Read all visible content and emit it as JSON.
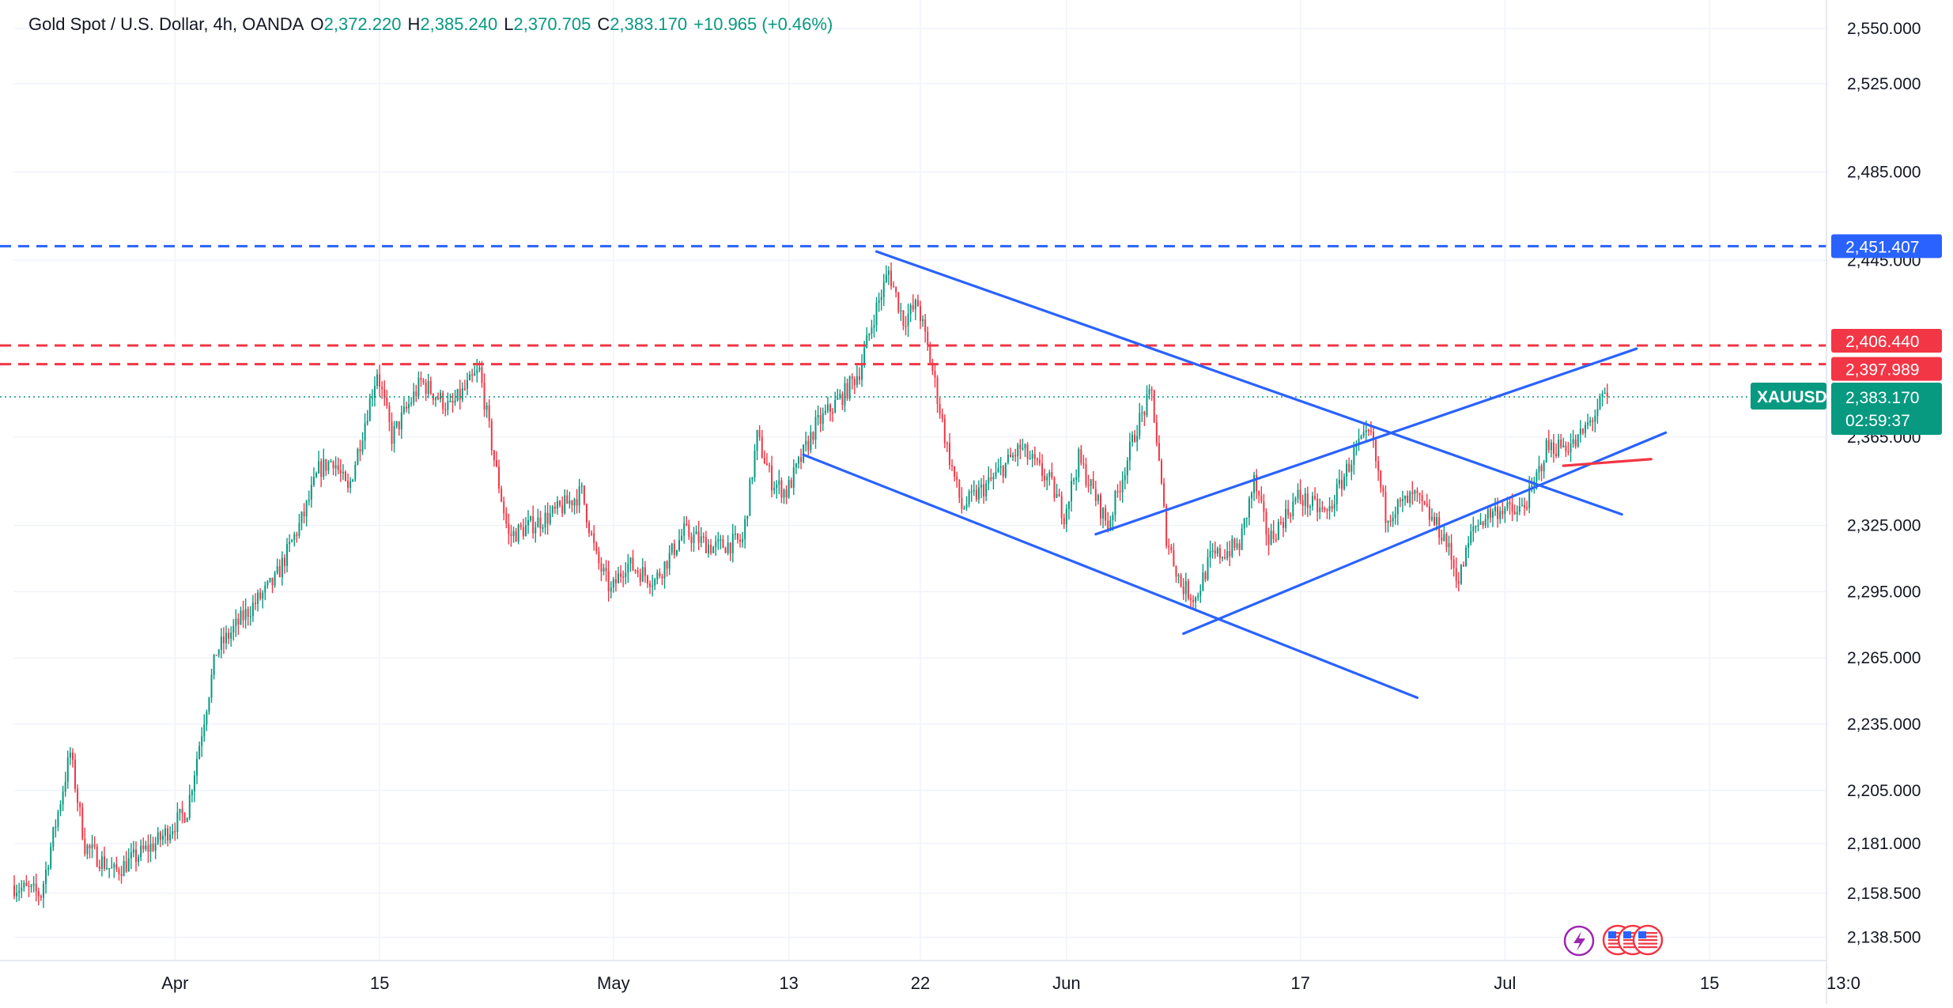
{
  "legend": {
    "title": "Gold Spot / U.S. Dollar, 4h, OANDA",
    "open_label": "O",
    "open": "2,372.220",
    "high_label": "H",
    "high": "2,385.240",
    "low_label": "L",
    "low": "2,370.705",
    "close_label": "C",
    "close": "2,383.170",
    "change": "+10.965 (+0.46%)"
  },
  "colors": {
    "up": "#089981",
    "down": "#f23645",
    "blue": "#2962ff",
    "red": "#f23645",
    "grid": "#f0f3fa",
    "axis_text": "#131722",
    "price_dotted": "#089981"
  },
  "chart_data": {
    "type": "candlestick",
    "symbol": "XAUUSD",
    "interval": "4h",
    "y_axis": {
      "range": [
        2128,
        2560
      ],
      "ticks": [
        "2,550.000",
        "2,525.000",
        "2,485.000",
        "2,445.000",
        "2,365.000",
        "2,325.000",
        "2,295.000",
        "2,265.000",
        "2,235.000",
        "2,205.000",
        "2,181.000",
        "2,158.500",
        "2,138.500"
      ],
      "tick_values": [
        2550,
        2525,
        2485,
        2445,
        2365,
        2325,
        2295,
        2265,
        2235,
        2205,
        2181,
        2158.5,
        2138.5
      ]
    },
    "x_axis": {
      "labels": [
        "Apr",
        "15",
        "May",
        "13",
        "22",
        "Jun",
        "17",
        "Jul",
        "15",
        "13:0"
      ],
      "label_dates": [
        "2024-04-01",
        "2024-04-15",
        "2024-05-01",
        "2024-05-13",
        "2024-05-22",
        "2024-06-01",
        "2024-06-17",
        "2024-07-01",
        "2024-07-15",
        "2024-07-23"
      ],
      "start": "2024-03-21",
      "end": "2024-07-23"
    },
    "price_path": [
      [
        "2024-03-21",
        2162
      ],
      [
        "2024-03-23",
        2158
      ],
      [
        "2024-03-25",
        2222
      ],
      [
        "2024-03-26",
        2180
      ],
      [
        "2024-03-28",
        2168
      ],
      [
        "2024-03-31",
        2182
      ],
      [
        "2024-04-02",
        2196
      ],
      [
        "2024-04-04",
        2268
      ],
      [
        "2024-04-06",
        2285
      ],
      [
        "2024-04-08",
        2300
      ],
      [
        "2024-04-10",
        2330
      ],
      [
        "2024-04-11",
        2350
      ],
      [
        "2024-04-12",
        2355
      ],
      [
        "2024-04-13",
        2340
      ],
      [
        "2024-04-15",
        2395
      ],
      [
        "2024-04-16",
        2365
      ],
      [
        "2024-04-18",
        2390
      ],
      [
        "2024-04-20",
        2378
      ],
      [
        "2024-04-22",
        2395
      ],
      [
        "2024-04-23",
        2355
      ],
      [
        "2024-04-24",
        2320
      ],
      [
        "2024-04-27",
        2330
      ],
      [
        "2024-04-29",
        2340
      ],
      [
        "2024-04-30",
        2310
      ],
      [
        "2024-05-01",
        2295
      ],
      [
        "2024-05-02",
        2308
      ],
      [
        "2024-05-04",
        2300
      ],
      [
        "2024-05-06",
        2322
      ],
      [
        "2024-05-08",
        2315
      ],
      [
        "2024-05-10",
        2318
      ],
      [
        "2024-05-11",
        2365
      ],
      [
        "2024-05-12",
        2345
      ],
      [
        "2024-05-13",
        2340
      ],
      [
        "2024-05-15",
        2370
      ],
      [
        "2024-05-17",
        2385
      ],
      [
        "2024-05-18",
        2395
      ],
      [
        "2024-05-19",
        2420
      ],
      [
        "2024-05-20",
        2440
      ],
      [
        "2024-05-21",
        2418
      ],
      [
        "2024-05-22",
        2425
      ],
      [
        "2024-05-23",
        2395
      ],
      [
        "2024-05-24",
        2360
      ],
      [
        "2024-05-25",
        2333
      ],
      [
        "2024-05-27",
        2345
      ],
      [
        "2024-05-29",
        2360
      ],
      [
        "2024-05-31",
        2345
      ],
      [
        "2024-06-01",
        2330
      ],
      [
        "2024-06-02",
        2355
      ],
      [
        "2024-06-04",
        2325
      ],
      [
        "2024-06-06",
        2370
      ],
      [
        "2024-06-07",
        2385
      ],
      [
        "2024-06-08",
        2320
      ],
      [
        "2024-06-09",
        2298
      ],
      [
        "2024-06-10",
        2292
      ],
      [
        "2024-06-11",
        2310
      ],
      [
        "2024-06-13",
        2316
      ],
      [
        "2024-06-14",
        2345
      ],
      [
        "2024-06-15",
        2318
      ],
      [
        "2024-06-17",
        2338
      ],
      [
        "2024-06-19",
        2330
      ],
      [
        "2024-06-21",
        2360
      ],
      [
        "2024-06-22",
        2366
      ],
      [
        "2024-06-23",
        2330
      ],
      [
        "2024-06-25",
        2338
      ],
      [
        "2024-06-27",
        2320
      ],
      [
        "2024-06-28",
        2300
      ],
      [
        "2024-06-29",
        2324
      ],
      [
        "2024-06-30",
        2330
      ],
      [
        "2024-07-01",
        2333
      ],
      [
        "2024-07-02",
        2330
      ],
      [
        "2024-07-03",
        2340
      ],
      [
        "2024-07-04",
        2360
      ],
      [
        "2024-07-06",
        2362
      ],
      [
        "2024-07-07",
        2372
      ],
      [
        "2024-07-08",
        2383.17
      ]
    ],
    "horizontal_levels": [
      {
        "value": 2451.407,
        "label": "2,451.407",
        "color": "blue",
        "style": "dashed"
      },
      {
        "value": 2406.44,
        "label": "2,406.440",
        "color": "red",
        "style": "dashed"
      },
      {
        "value": 2397.989,
        "label": "2,397.989",
        "color": "red",
        "style": "dashed"
      }
    ],
    "current_price": {
      "value": 2383.17,
      "label": "2,383.170",
      "symbol": "XAUUSD",
      "countdown": "02:59:37"
    },
    "trend_lines": [
      {
        "name": "upper-falling-line",
        "color": "blue",
        "from": [
          "2024-05-19",
          2449
        ],
        "to": [
          "2024-07-09",
          2330
        ]
      },
      {
        "name": "lower-falling-line",
        "color": "blue",
        "from": [
          "2024-05-14",
          2357
        ],
        "to": [
          "2024-06-25",
          2247
        ]
      },
      {
        "name": "rising-channel-lower",
        "color": "blue",
        "from": [
          "2024-06-09",
          2276
        ],
        "to": [
          "2024-07-12",
          2367
        ]
      },
      {
        "name": "rising-channel-upper",
        "color": "blue",
        "from": [
          "2024-06-03",
          2321
        ],
        "to": [
          "2024-07-10",
          2405
        ]
      },
      {
        "name": "short-red-line",
        "color": "red",
        "from": [
          "2024-07-05",
          2352
        ],
        "to": [
          "2024-07-11",
          2355
        ]
      }
    ]
  }
}
